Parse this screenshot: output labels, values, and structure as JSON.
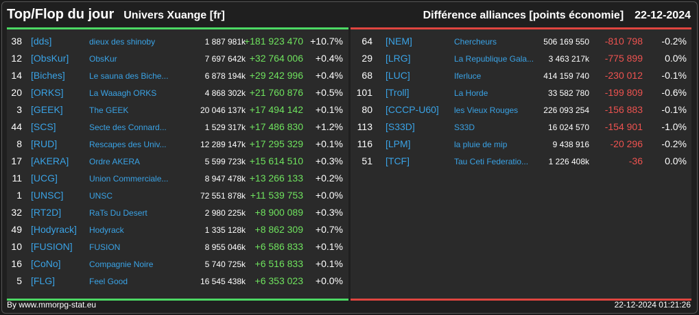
{
  "header": {
    "title": "Top/Flop du jour",
    "subtitle": "Univers Xuange [fr]",
    "metric": "Différence alliances [points économie]",
    "date": "22-12-2024"
  },
  "colors": {
    "top_accent": "#4cd964",
    "flop_accent": "#e0453f",
    "tag": "#3aa3e6",
    "positive": "#6fe35e",
    "negative": "#ef5350"
  },
  "top": [
    {
      "rank": "38",
      "tag": "[dds]",
      "name": "dieux des shinoby",
      "points": "1 887 981k",
      "diff": "+181 923 470",
      "pct": "+10.7%"
    },
    {
      "rank": "12",
      "tag": "[ObsKur]",
      "name": "ObsKur",
      "points": "7 697 642k",
      "diff": "+32 764 006",
      "pct": "+0.4%"
    },
    {
      "rank": "14",
      "tag": "[Biches]",
      "name": "Le sauna des Biche...",
      "points": "6 878 194k",
      "diff": "+29 242 996",
      "pct": "+0.4%"
    },
    {
      "rank": "20",
      "tag": "[ORKS]",
      "name": "La Waaagh ORKS",
      "points": "4 868 302k",
      "diff": "+21 760 876",
      "pct": "+0.5%"
    },
    {
      "rank": "3",
      "tag": "[GEEK]",
      "name": "The GEEK",
      "points": "20 046 137k",
      "diff": "+17 494 142",
      "pct": "+0.1%"
    },
    {
      "rank": "44",
      "tag": "[SCS]",
      "name": "Secte des Connard...",
      "points": "1 529 317k",
      "diff": "+17 486 830",
      "pct": "+1.2%"
    },
    {
      "rank": "8",
      "tag": "[RUD]",
      "name": "Rescapes des Univ...",
      "points": "12 289 147k",
      "diff": "+17 295 329",
      "pct": "+0.1%"
    },
    {
      "rank": "17",
      "tag": "[AKERA]",
      "name": "Ordre AKERA",
      "points": "5 599 723k",
      "diff": "+15 614 510",
      "pct": "+0.3%"
    },
    {
      "rank": "11",
      "tag": "[UCG]",
      "name": "Union Commerciale...",
      "points": "8 947 478k",
      "diff": "+13 266 133",
      "pct": "+0.2%"
    },
    {
      "rank": "1",
      "tag": "[UNSC]",
      "name": "UNSC",
      "points": "72 551 878k",
      "diff": "+11 539 753",
      "pct": "+0.0%"
    },
    {
      "rank": "32",
      "tag": "[RT2D]",
      "name": "RaTs Du Desert",
      "points": "2 980 225k",
      "diff": "+8 900 089",
      "pct": "+0.3%"
    },
    {
      "rank": "49",
      "tag": "[Hodyrack]",
      "name": "Hodyrack",
      "points": "1 335 128k",
      "diff": "+8 862 309",
      "pct": "+0.7%"
    },
    {
      "rank": "10",
      "tag": "[FUSION]",
      "name": "FUSION",
      "points": "8 955 046k",
      "diff": "+6 586 833",
      "pct": "+0.1%"
    },
    {
      "rank": "16",
      "tag": "[CoNo]",
      "name": "Compagnie Noire",
      "points": "5 740 725k",
      "diff": "+6 516 833",
      "pct": "+0.1%"
    },
    {
      "rank": "5",
      "tag": "[FLG]",
      "name": "Feel Good",
      "points": "16 545 438k",
      "diff": "+6 353 023",
      "pct": "+0.0%"
    }
  ],
  "flop": [
    {
      "rank": "64",
      "tag": "[NEM]",
      "name": "Chercheurs",
      "points": "506 169 550",
      "diff": "-810 798",
      "pct": "-0.2%"
    },
    {
      "rank": "29",
      "tag": "[LRG]",
      "name": "La Republique Gala...",
      "points": "3 463 217k",
      "diff": "-775 899",
      "pct": "0.0%"
    },
    {
      "rank": "68",
      "tag": "[LUC]",
      "name": "Iferluce",
      "points": "414 159 740",
      "diff": "-230 012",
      "pct": "-0.1%"
    },
    {
      "rank": "101",
      "tag": "[Troll]",
      "name": "La Horde",
      "points": "33 582 780",
      "diff": "-199 809",
      "pct": "-0.6%"
    },
    {
      "rank": "80",
      "tag": "[CCCP-U60]",
      "name": "les Vieux Rouges",
      "points": "226 093 254",
      "diff": "-156 883",
      "pct": "-0.1%"
    },
    {
      "rank": "113",
      "tag": "[S33D]",
      "name": "S33D",
      "points": "16 024 570",
      "diff": "-154 901",
      "pct": "-1.0%"
    },
    {
      "rank": "116",
      "tag": "[LPM]",
      "name": "la pluie de mip",
      "points": "9 438 916",
      "diff": "-20 296",
      "pct": "-0.2%"
    },
    {
      "rank": "51",
      "tag": "[TCF]",
      "name": "Tau Ceti Federatio...",
      "points": "1 226 408k",
      "diff": "-36",
      "pct": "0.0%"
    }
  ],
  "footer": {
    "credit": "By www.mmorpg-stat.eu",
    "timestamp": "22-12-2024 01:21:26"
  }
}
